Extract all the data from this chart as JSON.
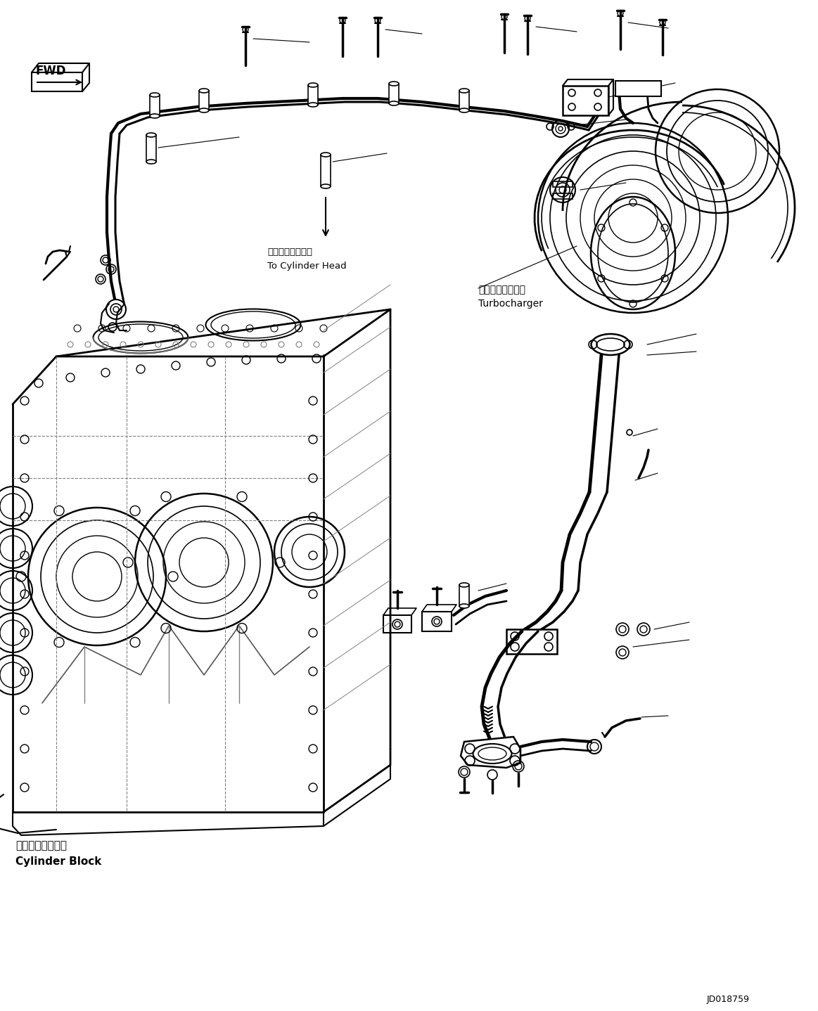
{
  "bg_color": "#ffffff",
  "line_color": "#000000",
  "fig_width": 11.63,
  "fig_height": 14.38,
  "dpi": 100,
  "labels": {
    "fwd": "FWD",
    "to_cylinder_head_jp": "シリンダヘッドへ",
    "to_cylinder_head_en": "To Cylinder Head",
    "turbocharger_jp": "ターボチャージャ",
    "turbocharger_en": "Turbocharger",
    "cylinder_block_jp": "シリンダブロック",
    "cylinder_block_en": "Cylinder Block",
    "part_number": "JD018759"
  }
}
